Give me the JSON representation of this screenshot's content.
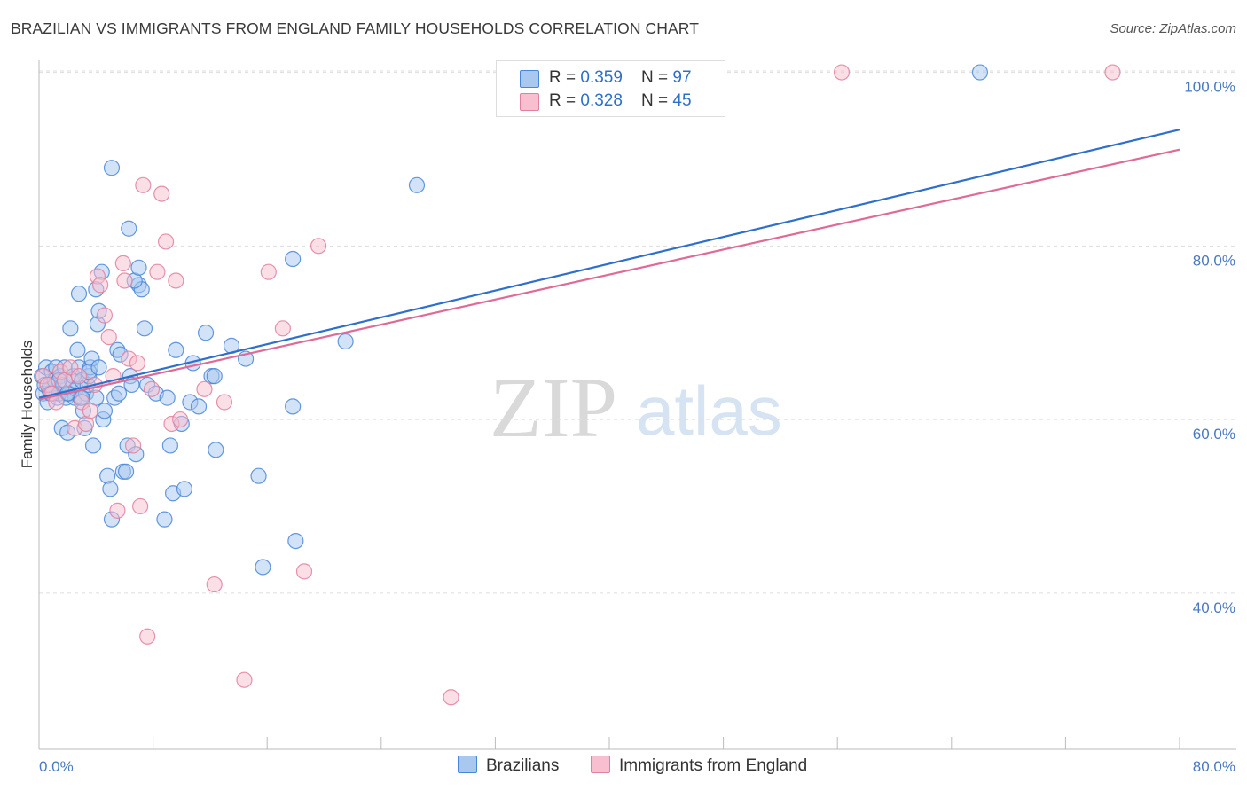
{
  "title": "BRAZILIAN VS IMMIGRANTS FROM ENGLAND FAMILY HOUSEHOLDS CORRELATION CHART",
  "source": "Source: ZipAtlas.com",
  "watermark": {
    "zip": "ZIP",
    "atlas": "atlas"
  },
  "colors": {
    "blue_fill": "#a8c8f0",
    "blue_stroke": "#4a86d8",
    "blue_line": "#2f6fcc",
    "pink_fill": "#f7bfd0",
    "pink_stroke": "#e0809e",
    "pink_line": "#e06a96",
    "grid": "#dddddd",
    "tick_label": "#4a78c2"
  },
  "legend": [
    {
      "r_label": "R = ",
      "r_value": "0.359",
      "n_label": "N = ",
      "n_value": "97"
    },
    {
      "r_label": "R = ",
      "r_value": "0.328",
      "n_label": "N = ",
      "n_value": "45"
    }
  ],
  "chart_data": {
    "type": "scatter",
    "xlabel": "",
    "ylabel": "Family Households",
    "xlim": [
      0,
      80
    ],
    "ylim": [
      22,
      102
    ],
    "x_tick_labels": [
      "0.0%",
      "80.0%"
    ],
    "y_ticks": [
      40,
      60,
      80,
      100
    ],
    "y_tick_labels": [
      "40.0%",
      "60.0%",
      "80.0%",
      "100.0%"
    ],
    "grid": true,
    "series": [
      {
        "name": "Brazilians",
        "r": 0.359,
        "n": 97,
        "trend": {
          "x": [
            0,
            80
          ],
          "y": [
            62.5,
            93.4
          ]
        },
        "points": [
          [
            0.2,
            65
          ],
          [
            0.3,
            63
          ],
          [
            0.4,
            64
          ],
          [
            0.5,
            66
          ],
          [
            0.6,
            62
          ],
          [
            0.7,
            63.5
          ],
          [
            0.8,
            64
          ],
          [
            0.9,
            65.5
          ],
          [
            1.0,
            63
          ],
          [
            1.1,
            64.5
          ],
          [
            1.2,
            66
          ],
          [
            1.3,
            62.5
          ],
          [
            1.4,
            63
          ],
          [
            1.5,
            65
          ],
          [
            1.6,
            59
          ],
          [
            1.7,
            64
          ],
          [
            1.8,
            66
          ],
          [
            1.9,
            62.5
          ],
          [
            2.0,
            58.5
          ],
          [
            2.1,
            63
          ],
          [
            2.2,
            70.5
          ],
          [
            2.3,
            64.5
          ],
          [
            2.4,
            65
          ],
          [
            2.5,
            62.5
          ],
          [
            2.6,
            63.5
          ],
          [
            2.7,
            68
          ],
          [
            2.8,
            66
          ],
          [
            2.9,
            62.5
          ],
          [
            3.0,
            64.5
          ],
          [
            3.1,
            61
          ],
          [
            3.2,
            59
          ],
          [
            3.3,
            63
          ],
          [
            3.4,
            64
          ],
          [
            3.5,
            65
          ],
          [
            3.6,
            66
          ],
          [
            3.7,
            67
          ],
          [
            3.8,
            57
          ],
          [
            4.0,
            62.5
          ],
          [
            4.1,
            71
          ],
          [
            4.2,
            72.5
          ],
          [
            4.5,
            60
          ],
          [
            4.6,
            61
          ],
          [
            4.8,
            53.5
          ],
          [
            5.0,
            52
          ],
          [
            5.1,
            48.5
          ],
          [
            5.3,
            62.5
          ],
          [
            5.5,
            68
          ],
          [
            5.7,
            67.5
          ],
          [
            5.9,
            54
          ],
          [
            6.1,
            54
          ],
          [
            6.2,
            57
          ],
          [
            6.4,
            65
          ],
          [
            6.5,
            64
          ],
          [
            6.8,
            56
          ],
          [
            7.0,
            75.5
          ],
          [
            7.2,
            75
          ],
          [
            7.4,
            70.5
          ],
          [
            7.6,
            64
          ],
          [
            8.2,
            63
          ],
          [
            8.8,
            48.5
          ],
          [
            9.0,
            62.5
          ],
          [
            9.2,
            57
          ],
          [
            9.4,
            51.5
          ],
          [
            9.6,
            68
          ],
          [
            10.0,
            59.5
          ],
          [
            10.2,
            52
          ],
          [
            10.6,
            62
          ],
          [
            10.8,
            66.5
          ],
          [
            11.2,
            61.5
          ],
          [
            11.7,
            70
          ],
          [
            12.1,
            65
          ],
          [
            12.3,
            65
          ],
          [
            12.4,
            56.5
          ],
          [
            13.5,
            68.5
          ],
          [
            14.5,
            67
          ],
          [
            15.4,
            53.5
          ],
          [
            15.7,
            43
          ],
          [
            17.8,
            78.5
          ],
          [
            17.8,
            61.5
          ],
          [
            18.0,
            46
          ],
          [
            21.5,
            69
          ],
          [
            26.5,
            87
          ],
          [
            4.4,
            77
          ],
          [
            6.7,
            76
          ],
          [
            7.0,
            77.5
          ],
          [
            4.0,
            75
          ],
          [
            6.3,
            82
          ],
          [
            5.1,
            89
          ],
          [
            2.8,
            74.5
          ],
          [
            3.5,
            65.5
          ],
          [
            4.2,
            66
          ],
          [
            5.6,
            63
          ],
          [
            0.8,
            63
          ],
          [
            1.4,
            64.5
          ],
          [
            2.0,
            63
          ],
          [
            3.0,
            62.5
          ],
          [
            66,
            100
          ]
        ]
      },
      {
        "name": "Immigrants from England",
        "r": 0.328,
        "n": 45,
        "trend": {
          "x": [
            0,
            80
          ],
          "y": [
            62.3,
            91.1
          ]
        },
        "points": [
          [
            0.3,
            65
          ],
          [
            0.6,
            64
          ],
          [
            0.9,
            63
          ],
          [
            1.2,
            62
          ],
          [
            1.5,
            65.5
          ],
          [
            1.8,
            64.5
          ],
          [
            2.2,
            66
          ],
          [
            2.5,
            59
          ],
          [
            2.8,
            65
          ],
          [
            3.0,
            62
          ],
          [
            3.3,
            59.5
          ],
          [
            3.6,
            61
          ],
          [
            3.9,
            64
          ],
          [
            4.1,
            76.5
          ],
          [
            4.3,
            75.5
          ],
          [
            4.6,
            72
          ],
          [
            4.9,
            69.5
          ],
          [
            5.2,
            65
          ],
          [
            5.5,
            49.5
          ],
          [
            5.9,
            78
          ],
          [
            6.0,
            76
          ],
          [
            6.3,
            67
          ],
          [
            6.6,
            57
          ],
          [
            6.9,
            66.5
          ],
          [
            7.1,
            50
          ],
          [
            7.3,
            87
          ],
          [
            7.6,
            35
          ],
          [
            7.9,
            63.5
          ],
          [
            8.3,
            77
          ],
          [
            8.6,
            86
          ],
          [
            8.9,
            80.5
          ],
          [
            9.3,
            59.5
          ],
          [
            9.6,
            76
          ],
          [
            9.9,
            60
          ],
          [
            11.6,
            63.5
          ],
          [
            12.3,
            41
          ],
          [
            13.0,
            62
          ],
          [
            14.4,
            30
          ],
          [
            16.1,
            77
          ],
          [
            17.1,
            70.5
          ],
          [
            18.6,
            42.5
          ],
          [
            19.6,
            80
          ],
          [
            28.9,
            28
          ],
          [
            56.3,
            100
          ],
          [
            75.3,
            100
          ]
        ]
      }
    ]
  }
}
